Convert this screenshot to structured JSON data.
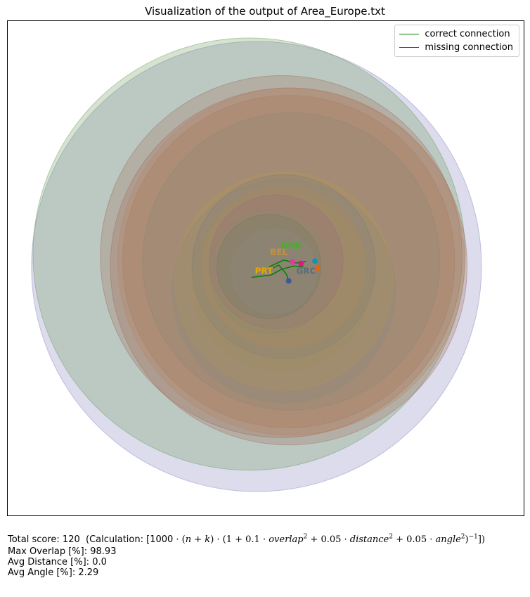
{
  "title": "Visualization of the output of Area_Europe.txt",
  "legend": [
    {
      "label": "correct connection",
      "color": "#008000"
    },
    {
      "label": "missing connection",
      "color": "#ff0000"
    }
  ],
  "stats": {
    "total_score_label": "Total score: 120",
    "calc_prefix": "(Calculation: [1000",
    "overlap_line": "Max Overlap [%]: 98.93",
    "distance_line": "Avg Distance [%]: 0.0",
    "angle_line": "Avg Angle [%]: 2.29"
  },
  "chart_data": {
    "type": "scatter",
    "title": "Visualization of the output of Area_Europe.txt",
    "xlim": [
      0,
      100
    ],
    "ylim": [
      0,
      100
    ],
    "grid": false,
    "legend_position": "top-right",
    "circles": [
      {
        "x": 48.0,
        "y": 50.5,
        "r": 45.4,
        "color": "#8080bf"
      },
      {
        "x": 46.5,
        "y": 53.0,
        "r": 43.6,
        "color": "#6b9a56"
      },
      {
        "x": 53.0,
        "y": 52.5,
        "r": 36.5,
        "color": "#9e6b5b"
      },
      {
        "x": 54.5,
        "y": 50.5,
        "r": 36.0,
        "color": "#a36a5c"
      },
      {
        "x": 55.0,
        "y": 51.5,
        "r": 35.0,
        "color": "#b7865f"
      },
      {
        "x": 54.5,
        "y": 51.5,
        "r": 33.5,
        "color": "#a87a5e"
      },
      {
        "x": 55.0,
        "y": 51.5,
        "r": 30.0,
        "color": "#8a8778"
      },
      {
        "x": 53.5,
        "y": 47.5,
        "r": 22.0,
        "color": "#b89a4a"
      },
      {
        "x": 53.5,
        "y": 45.5,
        "r": 22.5,
        "color": "#8d8a7d"
      },
      {
        "x": 53.5,
        "y": 50.5,
        "r": 18.5,
        "color": "#7f7d7a"
      },
      {
        "x": 53.0,
        "y": 47.5,
        "r": 18.0,
        "color": "#9a8c60"
      },
      {
        "x": 53.5,
        "y": 50.5,
        "r": 16.5,
        "color": "#b08a62"
      },
      {
        "x": 52.0,
        "y": 51.5,
        "r": 13.5,
        "color": "#9c6a80"
      },
      {
        "x": 51.0,
        "y": 49.5,
        "r": 12.5,
        "color": "#8a8a6a"
      },
      {
        "x": 50.5,
        "y": 50.5,
        "r": 10.5,
        "color": "#6f7c64"
      },
      {
        "x": 51.5,
        "y": 49.5,
        "r": 8.5,
        "color": "#8e8a86"
      }
    ],
    "labels": [
      {
        "text": "DNK",
        "x": 55.0,
        "y": 54.6,
        "color": "#44b02a"
      },
      {
        "text": "BEL",
        "x": 52.5,
        "y": 53.3,
        "color": "#c98f3a"
      },
      {
        "text": "PRT",
        "x": 49.5,
        "y": 49.5,
        "color": "#e5a800"
      },
      {
        "text": "GRC",
        "x": 58.0,
        "y": 49.5,
        "color": "#5a6e78"
      }
    ],
    "connections": [
      {
        "from": [
          47.0,
          48.3
        ],
        "to": [
          51.0,
          48.8
        ],
        "status": "correct"
      },
      {
        "from": [
          51.0,
          48.8
        ],
        "to": [
          53.0,
          49.9
        ],
        "status": "correct"
      },
      {
        "from": [
          53.0,
          49.9
        ],
        "to": [
          55.5,
          50.6
        ],
        "status": "correct"
      },
      {
        "from": [
          55.5,
          50.6
        ],
        "to": [
          57.5,
          50.4
        ],
        "status": "correct"
      },
      {
        "from": [
          50.5,
          50.4
        ],
        "to": [
          53.5,
          51.8
        ],
        "status": "correct"
      },
      {
        "from": [
          53.5,
          51.8
        ],
        "to": [
          56.0,
          51.2
        ],
        "status": "correct"
      },
      {
        "from": [
          52.5,
          50.8
        ],
        "to": [
          54.0,
          49.0
        ],
        "status": "correct"
      },
      {
        "from": [
          54.0,
          49.0
        ],
        "to": [
          54.5,
          47.6
        ],
        "status": "correct"
      },
      {
        "from": [
          56.0,
          51.2
        ],
        "to": [
          58.0,
          51.5
        ],
        "status": "correct"
      },
      {
        "from": [
          51.0,
          50.0
        ],
        "to": [
          52.5,
          50.8
        ],
        "status": "correct"
      }
    ],
    "markers": [
      {
        "x": 60.3,
        "y": 50.2,
        "color": "#e8630a"
      },
      {
        "x": 57.0,
        "y": 51.1,
        "color": "#e0148c"
      },
      {
        "x": 55.3,
        "y": 51.4,
        "color": "#d63fa0"
      },
      {
        "x": 59.8,
        "y": 51.6,
        "color": "#1a8fb0"
      },
      {
        "x": 54.5,
        "y": 47.6,
        "color": "#3c5a9a"
      }
    ]
  }
}
